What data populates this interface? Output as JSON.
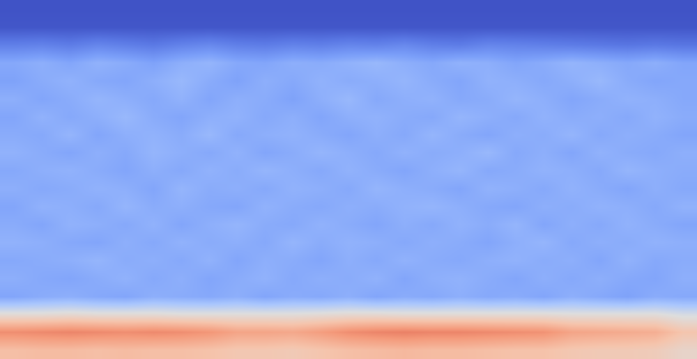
{
  "chart_data": {
    "type": "heatmap",
    "tick_labels": false,
    "zlim": [
      0,
      1
    ],
    "cells": [
      [
        0.02,
        0.02,
        0.02,
        0.02,
        0.02,
        0.02,
        0.02,
        0.02,
        0.02,
        0.02,
        0.02,
        0.02,
        0.02,
        0.02,
        0.02,
        0.02,
        0.02,
        0.02,
        0.02,
        0.02,
        0.02,
        0.02,
        0.02,
        0.02,
        0.02
      ],
      [
        0.03,
        0.03,
        0.03,
        0.03,
        0.03,
        0.03,
        0.03,
        0.03,
        0.03,
        0.03,
        0.03,
        0.03,
        0.03,
        0.03,
        0.03,
        0.03,
        0.03,
        0.03,
        0.03,
        0.03,
        0.03,
        0.03,
        0.03,
        0.03,
        0.03
      ],
      [
        0.15,
        0.16,
        0.14,
        0.17,
        0.15,
        0.13,
        0.16,
        0.18,
        0.15,
        0.14,
        0.16,
        0.15,
        0.17,
        0.16,
        0.18,
        0.15,
        0.14,
        0.17,
        0.16,
        0.15,
        0.14,
        0.13,
        0.12,
        0.13,
        0.12
      ],
      [
        0.28,
        0.3,
        0.27,
        0.31,
        0.29,
        0.26,
        0.3,
        0.32,
        0.28,
        0.27,
        0.3,
        0.29,
        0.31,
        0.33,
        0.3,
        0.28,
        0.31,
        0.3,
        0.27,
        0.29,
        0.32,
        0.3,
        0.28,
        0.3,
        0.27
      ],
      [
        0.26,
        0.29,
        0.31,
        0.28,
        0.27,
        0.3,
        0.33,
        0.29,
        0.26,
        0.3,
        0.28,
        0.31,
        0.29,
        0.3,
        0.32,
        0.29,
        0.27,
        0.31,
        0.3,
        0.28,
        0.3,
        0.33,
        0.29,
        0.27,
        0.28
      ],
      [
        0.3,
        0.27,
        0.29,
        0.32,
        0.3,
        0.28,
        0.31,
        0.27,
        0.3,
        0.29,
        0.26,
        0.3,
        0.33,
        0.28,
        0.3,
        0.31,
        0.28,
        0.29,
        0.32,
        0.3,
        0.27,
        0.29,
        0.31,
        0.3,
        0.28
      ],
      [
        0.27,
        0.31,
        0.28,
        0.3,
        0.33,
        0.29,
        0.27,
        0.3,
        0.31,
        0.28,
        0.3,
        0.27,
        0.3,
        0.31,
        0.29,
        0.28,
        0.32,
        0.3,
        0.28,
        0.31,
        0.29,
        0.3,
        0.28,
        0.31,
        0.29
      ],
      [
        0.29,
        0.28,
        0.32,
        0.27,
        0.3,
        0.31,
        0.29,
        0.33,
        0.28,
        0.3,
        0.31,
        0.29,
        0.27,
        0.3,
        0.28,
        0.32,
        0.29,
        0.27,
        0.3,
        0.29,
        0.32,
        0.28,
        0.3,
        0.29,
        0.27
      ],
      [
        0.31,
        0.29,
        0.27,
        0.3,
        0.28,
        0.32,
        0.3,
        0.28,
        0.31,
        0.27,
        0.29,
        0.32,
        0.3,
        0.28,
        0.31,
        0.29,
        0.3,
        0.33,
        0.28,
        0.3,
        0.27,
        0.31,
        0.29,
        0.28,
        0.3
      ],
      [
        0.28,
        0.3,
        0.31,
        0.29,
        0.27,
        0.3,
        0.28,
        0.31,
        0.29,
        0.32,
        0.3,
        0.28,
        0.31,
        0.29,
        0.27,
        0.3,
        0.32,
        0.28,
        0.29,
        0.31,
        0.3,
        0.28,
        0.32,
        0.3,
        0.29
      ],
      [
        0.3,
        0.28,
        0.29,
        0.31,
        0.3,
        0.27,
        0.32,
        0.29,
        0.3,
        0.28,
        0.31,
        0.3,
        0.28,
        0.32,
        0.3,
        0.29,
        0.27,
        0.31,
        0.3,
        0.28,
        0.31,
        0.29,
        0.27,
        0.3,
        0.28
      ],
      [
        0.27,
        0.31,
        0.3,
        0.28,
        0.32,
        0.29,
        0.3,
        0.28,
        0.27,
        0.31,
        0.29,
        0.28,
        0.3,
        0.29,
        0.31,
        0.32,
        0.3,
        0.28,
        0.27,
        0.3,
        0.29,
        0.31,
        0.3,
        0.28,
        0.31
      ],
      [
        0.29,
        0.27,
        0.31,
        0.3,
        0.28,
        0.31,
        0.27,
        0.3,
        0.32,
        0.29,
        0.28,
        0.31,
        0.29,
        0.27,
        0.3,
        0.28,
        0.31,
        0.29,
        0.32,
        0.27,
        0.3,
        0.28,
        0.31,
        0.29,
        0.27
      ],
      [
        0.31,
        0.3,
        0.28,
        0.27,
        0.3,
        0.28,
        0.31,
        0.29,
        0.3,
        0.28,
        0.32,
        0.29,
        0.31,
        0.3,
        0.28,
        0.3,
        0.29,
        0.27,
        0.3,
        0.32,
        0.28,
        0.3,
        0.29,
        0.31,
        0.3
      ],
      [
        0.28,
        0.29,
        0.3,
        0.32,
        0.29,
        0.3,
        0.28,
        0.31,
        0.27,
        0.3,
        0.29,
        0.27,
        0.3,
        0.28,
        0.31,
        0.29,
        0.28,
        0.3,
        0.31,
        0.29,
        0.3,
        0.27,
        0.31,
        0.28,
        0.29
      ],
      [
        0.3,
        0.28,
        0.27,
        0.29,
        0.31,
        0.28,
        0.3,
        0.27,
        0.29,
        0.31,
        0.28,
        0.3,
        0.29,
        0.31,
        0.27,
        0.3,
        0.31,
        0.29,
        0.27,
        0.3,
        0.28,
        0.3,
        0.28,
        0.27,
        0.3
      ],
      [
        0.27,
        0.29,
        0.3,
        0.28,
        0.27,
        0.3,
        0.29,
        0.28,
        0.3,
        0.27,
        0.29,
        0.28,
        0.3,
        0.27,
        0.29,
        0.28,
        0.3,
        0.28,
        0.29,
        0.27,
        0.3,
        0.28,
        0.26,
        0.29,
        0.28
      ],
      [
        0.52,
        0.52,
        0.53,
        0.52,
        0.52,
        0.52,
        0.51,
        0.51,
        0.51,
        0.51,
        0.51,
        0.52,
        0.53,
        0.53,
        0.52,
        0.52,
        0.52,
        0.52,
        0.52,
        0.52,
        0.51,
        0.51,
        0.51,
        0.51,
        0.48
      ],
      [
        0.78,
        0.79,
        0.8,
        0.79,
        0.78,
        0.79,
        0.78,
        0.76,
        0.72,
        0.72,
        0.71,
        0.74,
        0.78,
        0.8,
        0.81,
        0.8,
        0.8,
        0.79,
        0.78,
        0.77,
        0.72,
        0.71,
        0.7,
        0.69,
        0.62
      ],
      [
        0.64,
        0.65,
        0.65,
        0.64,
        0.65,
        0.64,
        0.64,
        0.63,
        0.61,
        0.61,
        0.6,
        0.62,
        0.64,
        0.65,
        0.66,
        0.65,
        0.65,
        0.64,
        0.63,
        0.63,
        0.61,
        0.6,
        0.6,
        0.59,
        0.55
      ]
    ]
  }
}
